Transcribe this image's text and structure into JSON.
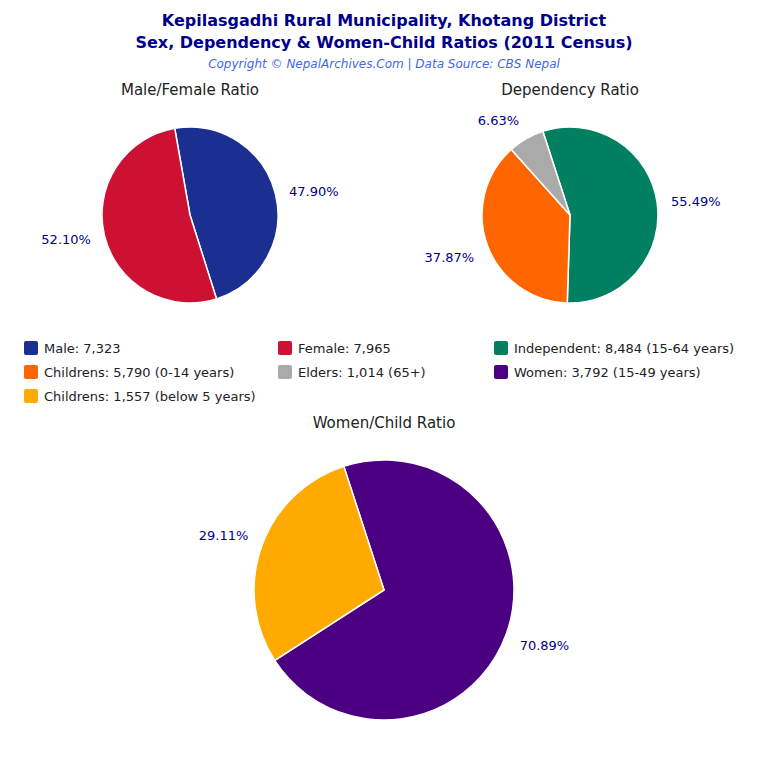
{
  "title": "Kepilasgadhi Rural Municipality, Khotang District",
  "subtitle": "Sex, Dependency & Women-Child Ratios (2011 Census)",
  "annotations": [
    "Copyright © NepalArchives.Com | Data Source: CBS Nepal"
  ],
  "chart_data": [
    {
      "type": "pie",
      "title": "Male/Female Ratio",
      "categories": [
        "Male: 7,323",
        "Female: 7,965"
      ],
      "values": [
        47.9,
        52.1
      ],
      "value_labels": [
        "47.90%",
        "52.10%"
      ],
      "colors": [
        "#1a2f8f",
        "#cc1133"
      ],
      "data_labels": true,
      "legend": "bottom"
    },
    {
      "type": "pie",
      "title": "Dependency Ratio",
      "categories": [
        "Independent: 8,484 (15-64 years)",
        "Childrens: 5,790 (0-14 years)",
        "Elders: 1,014 (65+)"
      ],
      "values": [
        55.49,
        37.87,
        6.63
      ],
      "value_labels": [
        "55.49%",
        "37.87%",
        "6.63%"
      ],
      "colors": [
        "#008060",
        "#ff6600",
        "#aaaaaa"
      ],
      "data_labels": true,
      "legend": "bottom"
    },
    {
      "type": "pie",
      "title": "Women/Child Ratio",
      "categories": [
        "Women: 3,792 (15-49 years)",
        "Childrens: 1,557 (below 5 years)"
      ],
      "values": [
        70.89,
        29.11
      ],
      "value_labels": [
        "70.89%",
        "29.11%"
      ],
      "colors": [
        "#4b0082",
        "#ffaa00"
      ],
      "data_labels": true,
      "legend": "top"
    }
  ]
}
